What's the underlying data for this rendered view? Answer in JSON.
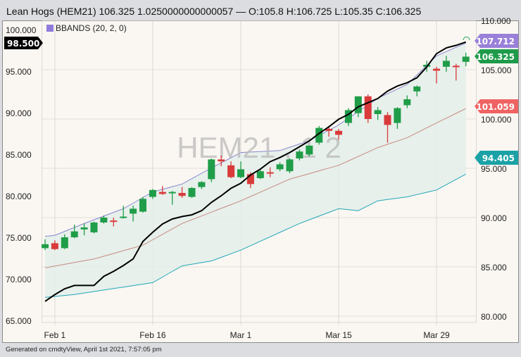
{
  "header": {
    "title": "Lean Hogs (HEM21) 106.325 1.0250000000000057 — O:105.8 H:106.725 L:105.35 C:106.325"
  },
  "footer": {
    "text": "Generated on cmdtyView, April 1st 2021, 7:57:05 pm"
  },
  "watermark": "HEM21 , 1 2",
  "legend": {
    "label": "BBANDS (20, 2, 0)",
    "color": "#8f7bdc"
  },
  "colors": {
    "up": "#1f9d48",
    "down": "#d93a3a",
    "bb_upper": "#8a86d0",
    "bb_middle": "#c98a80",
    "bb_lower": "#22a6b8",
    "bb_fill": "#e3eeea",
    "line": "#000000",
    "plot_bg": "#faf7f2"
  },
  "chart_data": {
    "type": "candlestick",
    "dates": [
      "Jan 29",
      "Feb 1",
      "Feb 2",
      "Feb 3",
      "Feb 4",
      "Feb 5",
      "Feb 8",
      "Feb 9",
      "Feb 10",
      "Feb 11",
      "Feb 12",
      "Feb 16",
      "Feb 17",
      "Feb 18",
      "Feb 19",
      "Feb 22",
      "Feb 23",
      "Feb 24",
      "Feb 25",
      "Feb 26",
      "Mar 1",
      "Mar 2",
      "Mar 3",
      "Mar 4",
      "Mar 5",
      "Mar 8",
      "Mar 9",
      "Mar 10",
      "Mar 11",
      "Mar 12",
      "Mar 15",
      "Mar 16",
      "Mar 17",
      "Mar 18",
      "Mar 19",
      "Mar 22",
      "Mar 23",
      "Mar 24",
      "Mar 25",
      "Mar 26",
      "Mar 29",
      "Mar 30",
      "Mar 31",
      "Apr 1"
    ],
    "x_ticks": [
      "Feb 1",
      "Feb 16",
      "Mar 1",
      "Mar 15",
      "Mar 29"
    ],
    "right_axis": {
      "ticks": [
        "110.000",
        "105.000",
        "100.000",
        "95.000",
        "90.000",
        "85.000",
        "80.000"
      ],
      "range": [
        80,
        110
      ]
    },
    "left_axis": {
      "ticks": [
        "100.000",
        "95.000",
        "90.000",
        "85.000",
        "80.000",
        "75.000",
        "70.000",
        "65.000"
      ],
      "range": [
        65,
        100
      ]
    },
    "ohlc": [
      [
        86.9,
        87.8,
        86.7,
        87.3
      ],
      [
        87.4,
        87.7,
        86.7,
        86.8
      ],
      [
        86.9,
        88.3,
        86.8,
        88.0
      ],
      [
        88.0,
        89.3,
        87.9,
        88.6
      ],
      [
        88.8,
        89.4,
        88.2,
        89.0
      ],
      [
        88.5,
        89.6,
        88.4,
        89.5
      ],
      [
        89.5,
        90.2,
        89.4,
        90.0
      ],
      [
        89.7,
        90.0,
        89.1,
        89.6
      ],
      [
        90.0,
        91.2,
        89.9,
        90.1
      ],
      [
        90.4,
        91.2,
        89.6,
        90.9
      ],
      [
        90.6,
        92.1,
        90.5,
        91.9
      ],
      [
        92.1,
        92.9,
        91.9,
        92.8
      ],
      [
        92.6,
        93.2,
        92.3,
        92.4
      ],
      [
        92.5,
        92.7,
        91.3,
        92.6
      ],
      [
        92.5,
        93.1,
        92.0,
        92.2
      ],
      [
        92.1,
        93.1,
        92.0,
        93.0
      ],
      [
        93.1,
        93.7,
        92.9,
        93.6
      ],
      [
        93.9,
        96.0,
        93.6,
        95.9
      ],
      [
        95.9,
        96.3,
        95.2,
        95.7
      ],
      [
        95.3,
        95.7,
        94.0,
        94.1
      ],
      [
        94.1,
        95.7,
        94.0,
        94.9
      ],
      [
        94.4,
        94.6,
        93.0,
        93.4
      ],
      [
        94.0,
        94.9,
        93.9,
        94.7
      ],
      [
        94.6,
        95.1,
        94.1,
        94.5
      ],
      [
        94.9,
        95.6,
        94.7,
        95.4
      ],
      [
        94.7,
        96.0,
        94.5,
        95.9
      ],
      [
        96.0,
        96.9,
        95.8,
        96.7
      ],
      [
        96.4,
        97.3,
        96.2,
        97.3
      ],
      [
        97.6,
        99.3,
        97.4,
        99.1
      ],
      [
        99.0,
        99.3,
        98.2,
        98.8
      ],
      [
        98.8,
        99.0,
        97.9,
        98.4
      ],
      [
        99.6,
        101.1,
        99.3,
        100.9
      ],
      [
        100.6,
        102.3,
        100.2,
        102.3
      ],
      [
        102.3,
        102.5,
        99.6,
        100.0
      ],
      [
        100.5,
        101.2,
        99.9,
        100.9
      ],
      [
        100.4,
        100.7,
        97.6,
        99.4
      ],
      [
        99.6,
        101.2,
        99.0,
        101.1
      ],
      [
        101.4,
        102.4,
        101.1,
        102.0
      ],
      [
        102.8,
        103.4,
        102.3,
        103.3
      ],
      [
        105.3,
        105.9,
        104.8,
        105.5
      ],
      [
        105.1,
        105.3,
        103.6,
        104.9
      ],
      [
        105.3,
        106.4,
        104.8,
        105.9
      ],
      [
        105.4,
        105.6,
        103.9,
        105.3
      ],
      [
        105.8,
        106.725,
        105.35,
        106.325
      ]
    ],
    "bbands_upper": [
      [
        "Jan 29",
        88.1
      ],
      [
        "Feb 1",
        88.2
      ],
      [
        "Feb 4",
        89.4
      ],
      [
        "Feb 10",
        90.9
      ],
      [
        "Feb 16",
        92.6
      ],
      [
        "Feb 19",
        93.4
      ],
      [
        "Feb 23",
        94.5
      ],
      [
        "Mar 1",
        96.6
      ],
      [
        "Mar 5",
        96.8
      ],
      [
        "Mar 10",
        97.8
      ],
      [
        "Mar 15",
        99.4
      ],
      [
        "Mar 19",
        102.1
      ],
      [
        "Mar 24",
        103.5
      ],
      [
        "Mar 29",
        106.4
      ],
      [
        "Apr 1",
        107.712
      ]
    ],
    "bbands_middle": [
      [
        "Jan 29",
        84.9
      ],
      [
        "Feb 5",
        85.8
      ],
      [
        "Feb 12",
        87.2
      ],
      [
        "Feb 19",
        89.4
      ],
      [
        "Mar 1",
        91.7
      ],
      [
        "Mar 8",
        93.9
      ],
      [
        "Mar 15",
        95.3
      ],
      [
        "Mar 19",
        97.1
      ],
      [
        "Mar 24",
        98.1
      ],
      [
        "Mar 29",
        99.6
      ],
      [
        "Apr 1",
        101.059
      ]
    ],
    "bbands_lower": [
      [
        "Jan 29",
        81.9
      ],
      [
        "Feb 3",
        82.2
      ],
      [
        "Feb 16",
        83.4
      ],
      [
        "Feb 19",
        85.1
      ],
      [
        "Feb 24",
        85.6
      ],
      [
        "Mar 1",
        86.7
      ],
      [
        "Mar 9",
        89.4
      ],
      [
        "Mar 15",
        90.9
      ],
      [
        "Mar 17",
        90.7
      ],
      [
        "Mar 19",
        91.7
      ],
      [
        "Mar 24",
        92.1
      ],
      [
        "Mar 29",
        92.8
      ],
      [
        "Apr 1",
        94.405
      ]
    ],
    "line_left_axis": [
      67.3,
      68.1,
      68.8,
      69.2,
      69.2,
      69.2,
      70.3,
      70.9,
      71.6,
      72.4,
      74.5,
      75.6,
      76.6,
      77.2,
      77.5,
      77.7,
      78.2,
      79.2,
      80.0,
      80.9,
      81.5,
      82.5,
      83.2,
      84.1,
      84.6,
      85.2,
      85.9,
      86.6,
      87.5,
      88.3,
      89.2,
      89.8,
      90.7,
      91.2,
      91.7,
      92.6,
      93.2,
      93.6,
      94.2,
      95.5,
      97.1,
      97.8,
      98.1,
      98.5
    ]
  },
  "price_tags": {
    "line_last": {
      "label": "98.500",
      "color": "#000000"
    },
    "bb_upper": {
      "label": "107.712",
      "color": "#9a80d8"
    },
    "close": {
      "label": "106.325",
      "color": "#1e9b4a"
    },
    "bb_middle": {
      "label": "101.059",
      "color": "#ef6363"
    },
    "bb_lower": {
      "label": "94.405",
      "color": "#1aa2a6"
    }
  }
}
